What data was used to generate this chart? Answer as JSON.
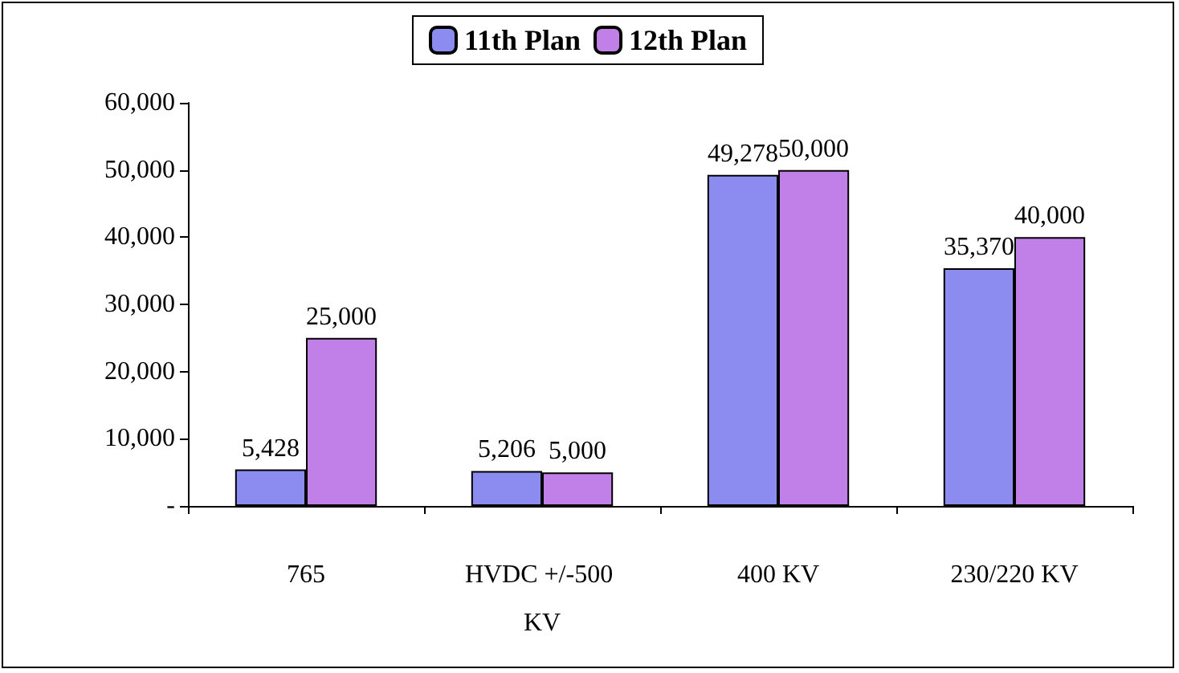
{
  "chart_data": {
    "type": "bar",
    "categories": [
      "765",
      "HVDC +/-500 KV",
      "400 KV",
      "230/220 KV"
    ],
    "series": [
      {
        "name": "11th Plan",
        "color": "#8c8cf0",
        "values": [
          5428,
          5206,
          49278,
          35370
        ],
        "value_labels": [
          "5,428",
          "5,206",
          "49,278",
          "35,370"
        ]
      },
      {
        "name": "12th Plan",
        "color": "#c080e8",
        "values": [
          25000,
          5000,
          50000,
          40000
        ],
        "value_labels": [
          "25,000",
          "5,000",
          "50,000",
          "40,000"
        ]
      }
    ],
    "ylim": [
      0,
      60000
    ],
    "yticks": [
      {
        "value": 0,
        "label": "-"
      },
      {
        "value": 10000,
        "label": "10,000"
      },
      {
        "value": 20000,
        "label": "20,000"
      },
      {
        "value": 30000,
        "label": "30,000"
      },
      {
        "value": 40000,
        "label": "40,000"
      },
      {
        "value": 50000,
        "label": "50,000"
      },
      {
        "value": 60000,
        "label": "60,000"
      }
    ],
    "grid": false,
    "legend": "top"
  }
}
